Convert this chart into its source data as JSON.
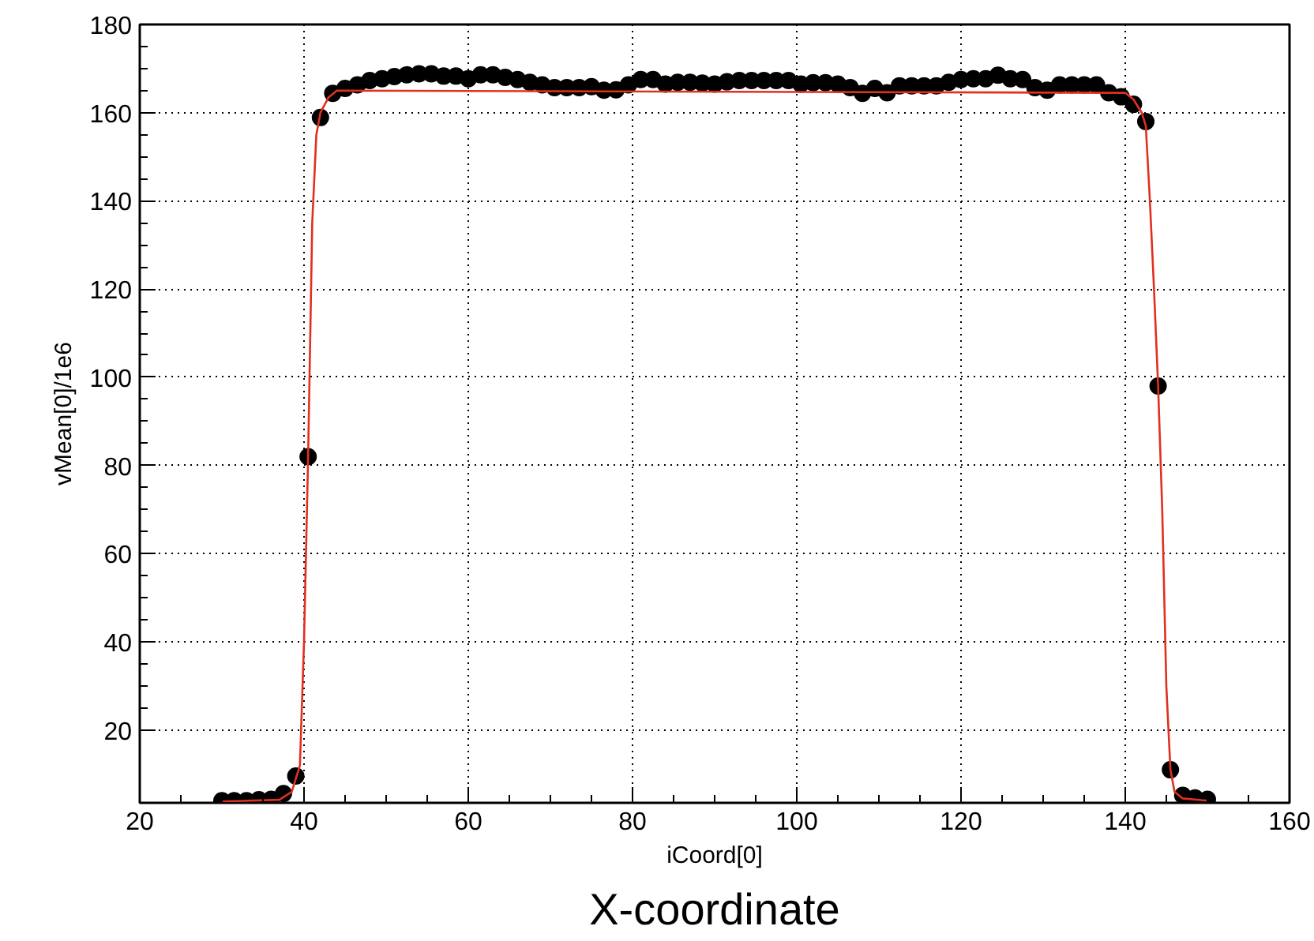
{
  "chart_data": {
    "type": "scatter",
    "xlabel": "iCoord[0]",
    "ylabel": "vMean[0]/1e6",
    "annotations": [
      "X-coordinate"
    ],
    "xlim": [
      20,
      160
    ],
    "ylim": [
      3.5,
      180
    ],
    "xticks": [
      20,
      40,
      60,
      80,
      100,
      120,
      140,
      160
    ],
    "yticks": [
      20,
      40,
      60,
      80,
      100,
      120,
      140,
      160,
      180
    ],
    "grid": true,
    "marker": "circle",
    "series": [
      {
        "color": "#000000",
        "x": [
          30,
          31.5,
          33,
          34.5,
          36,
          37.5,
          39,
          40.5,
          42,
          43.5,
          45,
          46.5,
          48,
          49.5,
          51,
          52.5,
          54,
          55.5,
          57,
          58.5,
          60,
          61.5,
          63,
          64.5,
          66,
          67.5,
          69,
          70.5,
          72,
          73.5,
          75,
          76.5,
          78,
          79.5,
          81,
          82.5,
          84,
          85.5,
          87,
          88.5,
          90,
          91.5,
          93,
          94.5,
          96,
          97.5,
          99,
          100.5,
          102,
          103.5,
          105,
          106.5,
          108,
          109.5,
          111,
          112.5,
          114,
          115.5,
          117,
          118.5,
          120,
          121.5,
          123,
          124.5,
          126,
          127.5,
          129,
          130.5,
          132,
          133.5,
          135,
          136.5,
          138,
          139.5,
          141,
          142.5,
          144,
          145.5,
          147,
          148.5,
          150
        ],
        "values": [
          4,
          4,
          4,
          4.2,
          4.3,
          5.6,
          9.6,
          82,
          158.9,
          164.4,
          165.5,
          166.3,
          167.3,
          167.7,
          168.2,
          168.6,
          168.8,
          168.8,
          168.3,
          168.3,
          167.7,
          168.6,
          168.6,
          168,
          167.5,
          166.9,
          166.3,
          165.7,
          165.7,
          165.7,
          165.9,
          165.1,
          165.2,
          166.3,
          167.5,
          167.5,
          166.5,
          166.9,
          166.9,
          166.7,
          166.5,
          167,
          167.3,
          167.3,
          167.3,
          167.3,
          167.3,
          166.5,
          166.8,
          166.8,
          166.5,
          165.7,
          164.4,
          165.5,
          164.5,
          166.1,
          166.1,
          166.1,
          166.1,
          166.9,
          167.5,
          167.7,
          167.7,
          168.5,
          167.7,
          167.5,
          165.7,
          165.1,
          166.3,
          166.3,
          166.3,
          166.3,
          164.5,
          163.6,
          161.9,
          158,
          98,
          11,
          5.2,
          4.6,
          4.3
        ]
      },
      {
        "type": "line",
        "color": "#e03020",
        "marker": "none",
        "line_style": "solid",
        "x": [
          30,
          37,
          38.5,
          39.5,
          40,
          40.5,
          41,
          41.5,
          42,
          43,
          44,
          140,
          141,
          142,
          142.5,
          143,
          143.5,
          144,
          144.5,
          145,
          145.5,
          146,
          147,
          150
        ],
        "values": [
          3.8,
          4.2,
          6,
          12,
          40,
          82,
          135,
          155,
          160,
          163.5,
          165,
          164.5,
          163,
          160,
          157,
          140,
          120,
          98,
          70,
          30,
          11,
          6,
          4.5,
          4
        ]
      }
    ]
  }
}
